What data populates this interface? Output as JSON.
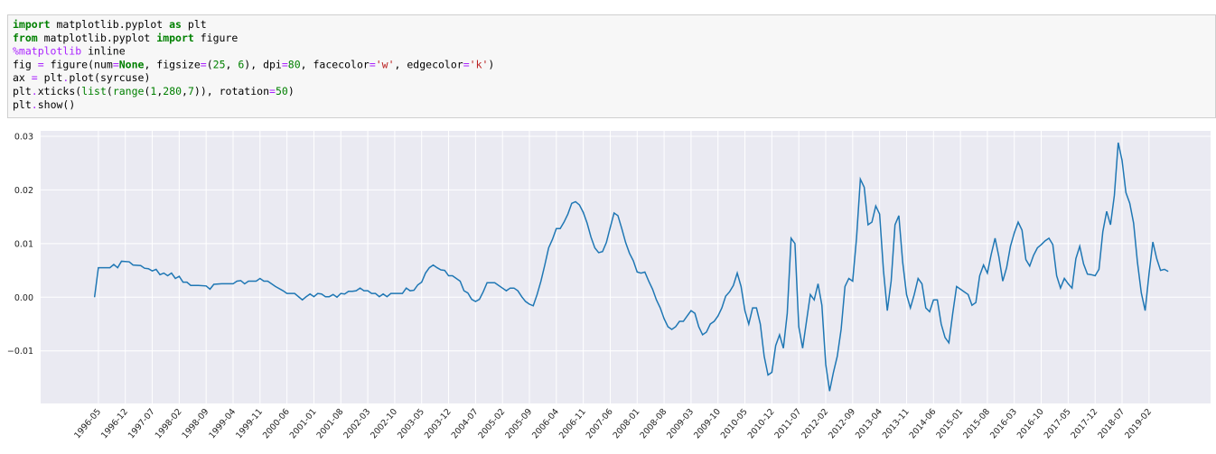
{
  "code": {
    "lines": [
      [
        [
          "import",
          "#008000",
          true
        ],
        [
          " matplotlib.pyplot ",
          "#000000"
        ],
        [
          "as",
          "#008000",
          true
        ],
        [
          " plt",
          "#000000"
        ]
      ],
      [
        [
          "from",
          "#008000",
          true
        ],
        [
          " matplotlib.pyplot ",
          "#000000"
        ],
        [
          "import",
          "#008000",
          true
        ],
        [
          " figure",
          "#000000"
        ]
      ],
      [
        [
          "%matplotlib",
          "#aa22ff"
        ],
        [
          " inline",
          "#000000"
        ]
      ],
      [
        [
          "fig ",
          "#000000"
        ],
        [
          "=",
          "#aa22ff"
        ],
        [
          " figure(num",
          "#000000"
        ],
        [
          "=",
          "#aa22ff"
        ],
        [
          "None",
          "#008000",
          true
        ],
        [
          ", figsize",
          "#000000"
        ],
        [
          "=",
          "#aa22ff"
        ],
        [
          "(",
          "#000000"
        ],
        [
          "25",
          "#008000"
        ],
        [
          ", ",
          "#000000"
        ],
        [
          "6",
          "#008000"
        ],
        [
          "), dpi",
          "#000000"
        ],
        [
          "=",
          "#aa22ff"
        ],
        [
          "80",
          "#008000"
        ],
        [
          ", facecolor",
          "#000000"
        ],
        [
          "=",
          "#aa22ff"
        ],
        [
          "'w'",
          "#ba2121"
        ],
        [
          ", edgecolor",
          "#000000"
        ],
        [
          "=",
          "#aa22ff"
        ],
        [
          "'k'",
          "#ba2121"
        ],
        [
          ")",
          "#000000"
        ]
      ],
      [
        [
          "ax ",
          "#000000"
        ],
        [
          "=",
          "#aa22ff"
        ],
        [
          " plt",
          "#000000"
        ],
        [
          ".",
          "#aa22ff"
        ],
        [
          "plot(syrcuse)",
          "#000000"
        ]
      ],
      [
        [
          "plt",
          "#000000"
        ],
        [
          ".",
          "#aa22ff"
        ],
        [
          "xticks(",
          "#000000"
        ],
        [
          "list",
          "#008000"
        ],
        [
          "(",
          "#000000"
        ],
        [
          "range",
          "#008000"
        ],
        [
          "(",
          "#000000"
        ],
        [
          "1",
          "#008000"
        ],
        [
          ",",
          "#000000"
        ],
        [
          "280",
          "#008000"
        ],
        [
          ",",
          "#000000"
        ],
        [
          "7",
          "#008000"
        ],
        [
          ")), rotation",
          "#000000"
        ],
        [
          "=",
          "#aa22ff"
        ],
        [
          "50",
          "#008000"
        ],
        [
          ")",
          "#000000"
        ]
      ],
      [
        [
          "plt",
          "#000000"
        ],
        [
          ".",
          "#aa22ff"
        ],
        [
          "show()",
          "#000000"
        ]
      ]
    ]
  },
  "chart_data": {
    "type": "line",
    "grid": true,
    "background": "#eaeaf2",
    "x": [
      0,
      1,
      3,
      4,
      5,
      6,
      7,
      9,
      10,
      12,
      13,
      14,
      15,
      16,
      17,
      18,
      19,
      20,
      21,
      22,
      23,
      24,
      25,
      27,
      29,
      30,
      31,
      33,
      36,
      37,
      38,
      39,
      40,
      42,
      43,
      44,
      45,
      47,
      49,
      50,
      52,
      54,
      55,
      56,
      57,
      58,
      59,
      60,
      61,
      62,
      63,
      64,
      65,
      66,
      67,
      68,
      69,
      70,
      71,
      72,
      73,
      74,
      75,
      76,
      77,
      78,
      80,
      81,
      82,
      83,
      84,
      85,
      86,
      87,
      88,
      89,
      90,
      91,
      92,
      93,
      94,
      95,
      96,
      97,
      98,
      99,
      100,
      101,
      102,
      103,
      104,
      105,
      106,
      107,
      108,
      109,
      110,
      111,
      112,
      113,
      114,
      115,
      116,
      117,
      118,
      119,
      120,
      121,
      122,
      123,
      124,
      125,
      126,
      127,
      128,
      129,
      130,
      131,
      132,
      133,
      134,
      135,
      136,
      137,
      138,
      139,
      140,
      141,
      142,
      143,
      144,
      145,
      146,
      147,
      148,
      149,
      150,
      151,
      152,
      153,
      154,
      155,
      156,
      157,
      158,
      159,
      160,
      161,
      162,
      163,
      164,
      165,
      166,
      167,
      168,
      169,
      170,
      171,
      172,
      173,
      174,
      175,
      176,
      177,
      178,
      179,
      180,
      181,
      182,
      183,
      184,
      185,
      186,
      187,
      188,
      189,
      190,
      191,
      192,
      193,
      194,
      195,
      196,
      197,
      198,
      199,
      200,
      201,
      202,
      203,
      204,
      205,
      206,
      207,
      208,
      209,
      210,
      211,
      212,
      213,
      214,
      215,
      216,
      217,
      218,
      219,
      220,
      221,
      222,
      223,
      224,
      225,
      226,
      227,
      228,
      229,
      230,
      231,
      232,
      233,
      234,
      235,
      236,
      237,
      238,
      239,
      240,
      241,
      242,
      243,
      244,
      245,
      246,
      247,
      248,
      249,
      250,
      251,
      252,
      253,
      254,
      255,
      256,
      257,
      258,
      259,
      260,
      261,
      262,
      263,
      264,
      265,
      266,
      267,
      268,
      269,
      270,
      271,
      272,
      273,
      274,
      275,
      276,
      277,
      278,
      279
    ],
    "series": [
      {
        "color": "#1f77b4",
        "values": [
          0,
          0.0055,
          0.0055,
          0.0055,
          0.0061,
          0.0055,
          0.0067,
          0.0066,
          0.006,
          0.0059,
          0.0054,
          0.0053,
          0.0049,
          0.0052,
          0.0042,
          0.0045,
          0.004,
          0.0045,
          0.0035,
          0.0039,
          0.0028,
          0.0028,
          0.0022,
          0.0022,
          0.0021,
          0.0015,
          0.0024,
          0.0025,
          0.0025,
          0.003,
          0.0031,
          0.0025,
          0.003,
          0.003,
          0.0035,
          0.003,
          0.003,
          0.002,
          0.0012,
          0.0007,
          0.0007,
          -0.0005,
          0.0001,
          0.0006,
          0.0001,
          0.0007,
          0.0006,
          0.0001,
          0.0001,
          0.0005,
          0,
          0.0007,
          0.0006,
          0.0011,
          0.0011,
          0.0012,
          0.0017,
          0.0012,
          0.0012,
          0.0007,
          0.0007,
          0.0001,
          0.0006,
          0.0001,
          0.0007,
          0.0007,
          0.0007,
          0.0017,
          0.0012,
          0.0013,
          0.0023,
          0.0028,
          0.0045,
          0.0055,
          0.006,
          0.0055,
          0.0051,
          0.005,
          0.004,
          0.004,
          0.0035,
          0.003,
          0.0012,
          0.0008,
          -0.0004,
          -0.0008,
          -0.0004,
          0.001,
          0.0027,
          0.0027,
          0.0027,
          0.0022,
          0.0017,
          0.0012,
          0.0017,
          0.0017,
          0.0012,
          0.0001,
          -0.0008,
          -0.0013,
          -0.0016,
          0.0005,
          0.003,
          0.006,
          0.0092,
          0.0108,
          0.0128,
          0.0128,
          0.014,
          0.0155,
          0.0175,
          0.0178,
          0.0172,
          0.0158,
          0.0138,
          0.0112,
          0.0092,
          0.0083,
          0.0085,
          0.0102,
          0.013,
          0.0157,
          0.0152,
          0.0128,
          0.0102,
          0.0082,
          0.0068,
          0.0047,
          0.0045,
          0.0047,
          0.003,
          0.0015,
          -0.0005,
          -0.002,
          -0.004,
          -0.0055,
          -0.006,
          -0.0055,
          -0.0045,
          -0.0045,
          -0.0035,
          -0.0025,
          -0.003,
          -0.0055,
          -0.007,
          -0.0065,
          -0.005,
          -0.0045,
          -0.0035,
          -0.002,
          0.0002,
          0.001,
          0.0022,
          0.0045,
          0.002,
          -0.0025,
          -0.005,
          -0.002,
          -0.002,
          -0.005,
          -0.011,
          -0.0145,
          -0.014,
          -0.009,
          -0.007,
          -0.0095,
          -0.003,
          0.011,
          0.01,
          -0.0055,
          -0.0095,
          -0.0045,
          0.0005,
          -0.0005,
          0.0025,
          -0.0015,
          -0.0125,
          -0.0175,
          -0.014,
          -0.011,
          -0.006,
          0.002,
          0.0035,
          0.003,
          0.011,
          0.022,
          0.0205,
          0.0135,
          0.014,
          0.017,
          0.0155,
          0.005,
          -0.0025,
          0.003,
          0.0135,
          0.0152,
          0.0065,
          0.0005,
          -0.002,
          0.0005,
          0.0035,
          0.0025,
          -0.002,
          -0.0027,
          -0.0005,
          -0.0005,
          -0.005,
          -0.0075,
          -0.0085,
          -0.003,
          0.002,
          0.0015,
          0.001,
          0.0005,
          -0.0015,
          -0.001,
          0.004,
          0.006,
          0.0045,
          0.008,
          0.011,
          0.0075,
          0.003,
          0.0055,
          0.0095,
          0.012,
          0.014,
          0.0125,
          0.007,
          0.0058,
          0.0078,
          0.0092,
          0.0098,
          0.0105,
          0.011,
          0.0098,
          0.004,
          0.0017,
          0.0035,
          0.0025,
          0.0017,
          0.0072,
          0.0095,
          0.0062,
          0.0043,
          0.0042,
          0.004,
          0.0052,
          0.0122,
          0.016,
          0.0135,
          0.019,
          0.0288,
          0.0255,
          0.0195,
          0.0175,
          0.0138,
          0.0065,
          0.0008,
          -0.0025,
          0.0043,
          0.0103,
          0.0072,
          0.005,
          0.0052,
          0.0048
        ]
      }
    ],
    "xlim": [
      -14,
      290
    ],
    "ylim": [
      -0.0198,
      0.031
    ],
    "yticks": [
      {
        "value": -0.01,
        "label": "−0.01"
      },
      {
        "value": 0,
        "label": "0.00"
      },
      0.01,
      0.02,
      0.03
    ],
    "xticks": [
      {
        "value": 1,
        "label": "1996-05"
      },
      {
        "value": 8,
        "label": "1996-12"
      },
      {
        "value": 15,
        "label": "1997-07"
      },
      {
        "value": 22,
        "label": "1998-02"
      },
      {
        "value": 29,
        "label": "1998-09"
      },
      {
        "value": 36,
        "label": "1999-04"
      },
      {
        "value": 43,
        "label": "1999-11"
      },
      {
        "value": 50,
        "label": "2000-06"
      },
      {
        "value": 57,
        "label": "2001-01"
      },
      {
        "value": 64,
        "label": "2001-08"
      },
      {
        "value": 71,
        "label": "2002-03"
      },
      {
        "value": 78,
        "label": "2002-10"
      },
      {
        "value": 85,
        "label": "2003-05"
      },
      {
        "value": 92,
        "label": "2003-12"
      },
      {
        "value": 99,
        "label": "2004-07"
      },
      {
        "value": 106,
        "label": "2005-02"
      },
      {
        "value": 113,
        "label": "2005-09"
      },
      {
        "value": 120,
        "label": "2006-04"
      },
      {
        "value": 127,
        "label": "2006-11"
      },
      {
        "value": 134,
        "label": "2007-06"
      },
      {
        "value": 141,
        "label": "2008-01"
      },
      {
        "value": 148,
        "label": "2008-08"
      },
      {
        "value": 155,
        "label": "2009-03"
      },
      {
        "value": 162,
        "label": "2009-10"
      },
      {
        "value": 169,
        "label": "2010-05"
      },
      {
        "value": 176,
        "label": "2010-12"
      },
      {
        "value": 183,
        "label": "2011-07"
      },
      {
        "value": 190,
        "label": "2012-02"
      },
      {
        "value": 197,
        "label": "2012-09"
      },
      {
        "value": 204,
        "label": "2013-04"
      },
      {
        "value": 211,
        "label": "2013-11"
      },
      {
        "value": 218,
        "label": "2014-06"
      },
      {
        "value": 225,
        "label": "2015-01"
      },
      {
        "value": 232,
        "label": "2015-08"
      },
      {
        "value": 239,
        "label": "2016-03"
      },
      {
        "value": 246,
        "label": "2016-10"
      },
      {
        "value": 253,
        "label": "2017-05"
      },
      {
        "value": 260,
        "label": "2017-12"
      },
      {
        "value": 267,
        "label": "2018-07"
      },
      {
        "value": 274,
        "label": "2019-02"
      }
    ]
  }
}
